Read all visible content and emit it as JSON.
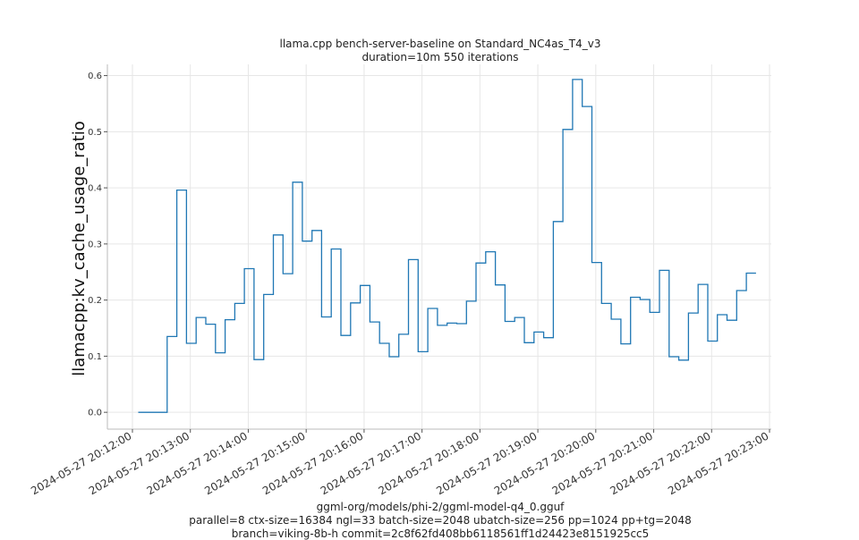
{
  "chart_data": {
    "type": "line",
    "title": "llama.cpp bench-server-baseline on Standard_NC4as_T4_v3",
    "subtitle": "duration=10m 550 iterations",
    "xlabel": "",
    "ylabel": "llamacpp:kv_cache_usage_ratio",
    "footer": [
      "ggml-org/models/phi-2/ggml-model-q4_0.gguf",
      "parallel=8 ctx-size=16384 ngl=33 batch-size=2048 ubatch-size=256 pp=1024 pp+tg=2048",
      "branch=viking-8b-h commit=2c8f62fd408bb6118561ff1d24423e8151925cc5"
    ],
    "x_tick_labels": [
      "2024-05-27 20:12:00",
      "2024-05-27 20:13:00",
      "2024-05-27 20:14:00",
      "2024-05-27 20:15:00",
      "2024-05-27 20:16:00",
      "2024-05-27 20:17:00",
      "2024-05-27 20:18:00",
      "2024-05-27 20:19:00",
      "2024-05-27 20:20:00",
      "2024-05-27 20:21:00",
      "2024-05-27 20:22:00",
      "2024-05-27 20:23:00"
    ],
    "y_tick_labels": [
      "0.0",
      "0.1",
      "0.2",
      "0.3",
      "0.4",
      "0.5",
      "0.6"
    ],
    "ylim": [
      -0.03,
      0.62
    ],
    "xlim": [
      "2024-05-27 20:12:00",
      "2024-05-27 20:23:00"
    ],
    "grid": true,
    "line_style": "step",
    "series": [
      {
        "color": "#1f77b4",
        "points": [
          [
            "2024-05-27 20:12:06",
            0.0
          ],
          [
            "2024-05-27 20:12:16",
            0.0
          ],
          [
            "2024-05-27 20:12:26",
            0.0
          ],
          [
            "2024-05-27 20:12:36",
            0.135
          ],
          [
            "2024-05-27 20:12:46",
            0.396
          ],
          [
            "2024-05-27 20:12:56",
            0.123
          ],
          [
            "2024-05-27 20:13:06",
            0.169
          ],
          [
            "2024-05-27 20:13:16",
            0.157
          ],
          [
            "2024-05-27 20:13:26",
            0.106
          ],
          [
            "2024-05-27 20:13:36",
            0.165
          ],
          [
            "2024-05-27 20:13:46",
            0.194
          ],
          [
            "2024-05-27 20:13:56",
            0.256
          ],
          [
            "2024-05-27 20:14:06",
            0.094
          ],
          [
            "2024-05-27 20:14:16",
            0.21
          ],
          [
            "2024-05-27 20:14:26",
            0.316
          ],
          [
            "2024-05-27 20:14:36",
            0.247
          ],
          [
            "2024-05-27 20:14:46",
            0.41
          ],
          [
            "2024-05-27 20:14:56",
            0.305
          ],
          [
            "2024-05-27 20:15:06",
            0.324
          ],
          [
            "2024-05-27 20:15:16",
            0.17
          ],
          [
            "2024-05-27 20:15:26",
            0.291
          ],
          [
            "2024-05-27 20:15:36",
            0.137
          ],
          [
            "2024-05-27 20:15:46",
            0.195
          ],
          [
            "2024-05-27 20:15:56",
            0.226
          ],
          [
            "2024-05-27 20:16:06",
            0.161
          ],
          [
            "2024-05-27 20:16:16",
            0.123
          ],
          [
            "2024-05-27 20:16:26",
            0.099
          ],
          [
            "2024-05-27 20:16:36",
            0.139
          ],
          [
            "2024-05-27 20:16:46",
            0.272
          ],
          [
            "2024-05-27 20:16:56",
            0.108
          ],
          [
            "2024-05-27 20:17:06",
            0.185
          ],
          [
            "2024-05-27 20:17:16",
            0.155
          ],
          [
            "2024-05-27 20:17:26",
            0.159
          ],
          [
            "2024-05-27 20:17:36",
            0.158
          ],
          [
            "2024-05-27 20:17:46",
            0.198
          ],
          [
            "2024-05-27 20:17:56",
            0.266
          ],
          [
            "2024-05-27 20:18:06",
            0.286
          ],
          [
            "2024-05-27 20:18:16",
            0.227
          ],
          [
            "2024-05-27 20:18:26",
            0.162
          ],
          [
            "2024-05-27 20:18:36",
            0.169
          ],
          [
            "2024-05-27 20:18:46",
            0.124
          ],
          [
            "2024-05-27 20:18:56",
            0.143
          ],
          [
            "2024-05-27 20:19:06",
            0.133
          ],
          [
            "2024-05-27 20:19:16",
            0.34
          ],
          [
            "2024-05-27 20:19:26",
            0.504
          ],
          [
            "2024-05-27 20:19:36",
            0.593
          ],
          [
            "2024-05-27 20:19:46",
            0.545
          ],
          [
            "2024-05-27 20:19:56",
            0.267
          ],
          [
            "2024-05-27 20:20:06",
            0.194
          ],
          [
            "2024-05-27 20:20:16",
            0.166
          ],
          [
            "2024-05-27 20:20:26",
            0.122
          ],
          [
            "2024-05-27 20:20:36",
            0.205
          ],
          [
            "2024-05-27 20:20:46",
            0.201
          ],
          [
            "2024-05-27 20:20:56",
            0.178
          ],
          [
            "2024-05-27 20:21:06",
            0.253
          ],
          [
            "2024-05-27 20:21:16",
            0.099
          ],
          [
            "2024-05-27 20:21:26",
            0.093
          ],
          [
            "2024-05-27 20:21:36",
            0.177
          ],
          [
            "2024-05-27 20:21:46",
            0.228
          ],
          [
            "2024-05-27 20:21:56",
            0.127
          ],
          [
            "2024-05-27 20:22:06",
            0.174
          ],
          [
            "2024-05-27 20:22:16",
            0.164
          ],
          [
            "2024-05-27 20:22:26",
            0.217
          ],
          [
            "2024-05-27 20:22:36",
            0.248
          ],
          [
            "2024-05-27 20:22:46",
            0.248
          ]
        ]
      }
    ]
  }
}
